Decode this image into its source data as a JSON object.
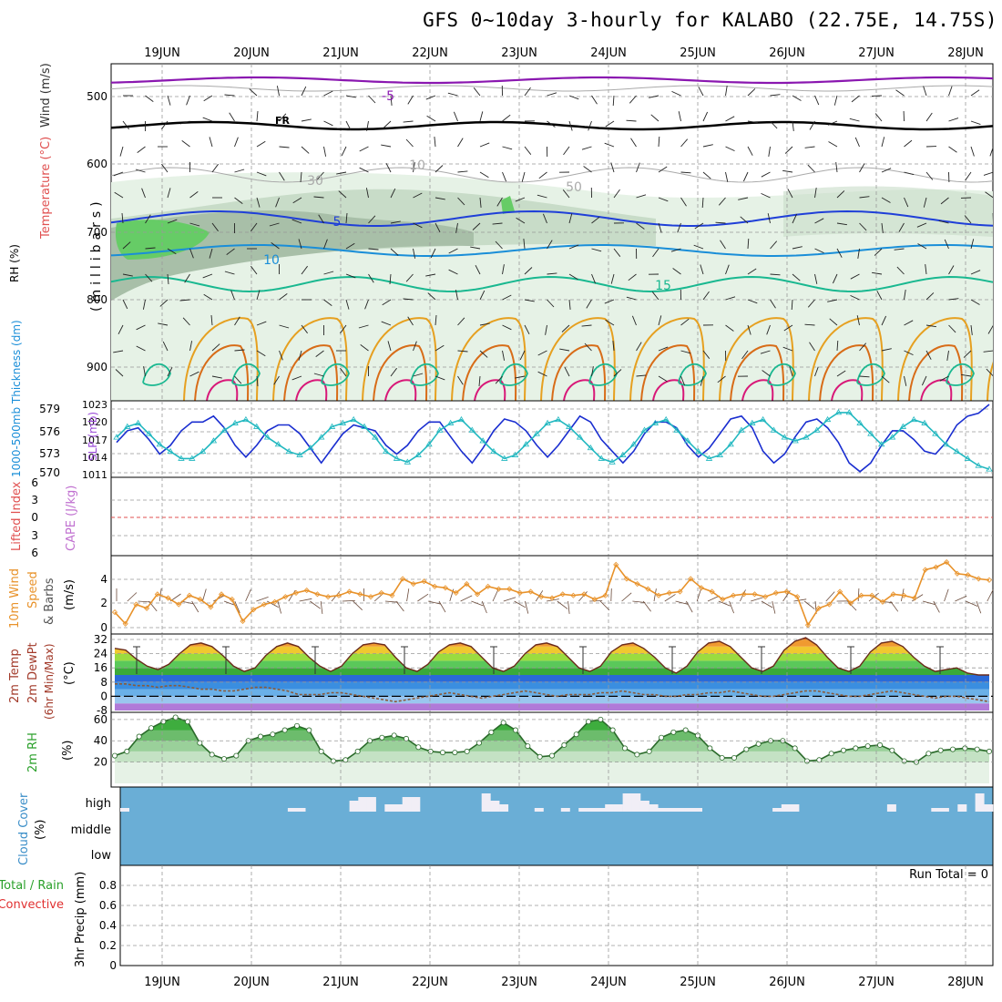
{
  "title": "GFS 0~10day 3-hourly for KALABO (22.75E, 14.75S)",
  "dates": [
    "19JUN",
    "20JUN",
    "21JUN",
    "22JUN",
    "23JUN",
    "24JUN",
    "25JUN",
    "26JUN",
    "27JUN",
    "28JUN"
  ],
  "colors": {
    "grid": "#999999",
    "rh_fill_light": "#e6f2e6",
    "rh_fill_mid": "#c8dcc8",
    "rh_fill_dark": "#a8bfa8",
    "rh_fill_green": "#66cc66",
    "temp_purple": "#8a17b0",
    "temp_blue": "#1f3fd8",
    "temp_lightblue": "#1a8ed8",
    "temp_teal": "#19b890",
    "temp_orange": "#e6a020",
    "temp_darkorange": "#d86c18",
    "temp_magenta": "#d81878",
    "slp_line": "#1a2ed0",
    "thickness_line": "#22b8c0",
    "wind10m_line": "#e8922a",
    "rh2m_fill": "#3dad3d",
    "cloud_bg": "#6aaed6",
    "cloud_bar": "#f1eef6",
    "zero_line": "#e05050",
    "dewpt_line": "#8a5a3a"
  },
  "panels": {
    "upper_air": {
      "ylabel_wind": "Wind (m/s)",
      "ylabel_temp": "Temperature (°C)",
      "ylabel_rh": "RH (%)",
      "ylabel_millibars": "(millibars)",
      "yticks": [
        "500",
        "600",
        "700",
        "800",
        "900"
      ],
      "contour_labels": [
        "-5",
        "FR",
        "5",
        "10",
        "15",
        "10",
        "30",
        "50"
      ]
    },
    "slp": {
      "ylabel_left": "1000-500mb Thickness (dm)",
      "ylabel_right": "SLP (mb)",
      "thickness_ticks": [
        "579",
        "576",
        "573",
        "570"
      ],
      "slp_ticks": [
        "1023",
        "1020",
        "1017",
        "1014",
        "1011"
      ]
    },
    "stability": {
      "ylabel_li": "Lifted Index",
      "ylabel_cape": "CAPE (J/kg)",
      "yticks": [
        "6",
        "3",
        "0",
        "3",
        "6"
      ]
    },
    "wind10m": {
      "ylabel": "10m Wind Speed & Barbs (m/s)",
      "ylabel_lines": [
        "10m Wind",
        "Speed",
        "& Barbs",
        "(m/s)"
      ],
      "yticks": [
        "4",
        "2",
        "0"
      ]
    },
    "temp2m": {
      "ylabel_lines": [
        "2m Temp",
        "2m DewPt",
        "(6hr Min/Max)",
        "(°C)"
      ],
      "yticks": [
        "32",
        "24",
        "16",
        "8",
        "0",
        "-8"
      ]
    },
    "rh2m": {
      "ylabel": "2m RH",
      "unit": "(%)",
      "yticks": [
        "60",
        "40",
        "20"
      ]
    },
    "cloud": {
      "ylabel": "Cloud Cover",
      "unit": "(%)",
      "levels": [
        "high",
        "middle",
        "low"
      ]
    },
    "precip": {
      "ylabel_lines": [
        "Total / Rain",
        "Convective",
        "3hr Precip (mm)"
      ],
      "run_total": "Run Total = 0",
      "yticks": [
        "0.8",
        "0.6",
        "0.4",
        "0.2",
        "0"
      ]
    }
  },
  "chart_data": [
    {
      "type": "line",
      "name": "slp_thickness",
      "x": "3-hourly steps, 18 Jun 18Z to 28 Jun 06Z",
      "series": [
        {
          "name": "SLP (mb)",
          "axis": "right",
          "ylim": [
            1011,
            1023
          ],
          "values": [
            1016.5,
            1018.5,
            1019,
            1017,
            1014.5,
            1016,
            1018.5,
            1020,
            1020,
            1021,
            1019,
            1016,
            1014,
            1016,
            1018.5,
            1019.5,
            1019.5,
            1018,
            1015.5,
            1013,
            1015.5,
            1018,
            1019.5,
            1019,
            1018.5,
            1016,
            1014.5,
            1016,
            1018.5,
            1020,
            1020,
            1017.5,
            1015,
            1013,
            1015.5,
            1018.5,
            1020.5,
            1020,
            1018.5,
            1016,
            1014,
            1016,
            1018.5,
            1021,
            1020,
            1017,
            1015,
            1013,
            1015,
            1018,
            1020,
            1020,
            1019,
            1016,
            1014,
            1015.5,
            1018,
            1020.5,
            1021,
            1019,
            1015,
            1013,
            1014.5,
            1017.5,
            1020,
            1020.5,
            1019,
            1016.5,
            1013,
            1011.5,
            1013,
            1016,
            1018.5,
            1018.5,
            1017,
            1015,
            1014.5,
            1016.5,
            1019.5,
            1021,
            1021.5,
            1023
          ]
        },
        {
          "name": "1000-500mb Thickness (dm)",
          "axis": "left",
          "ylim": [
            570,
            579
          ],
          "values": [
            575,
            576.5,
            577,
            575.5,
            574,
            573,
            572,
            572,
            573,
            574.5,
            576,
            577,
            577.5,
            576.5,
            575,
            574,
            573,
            572.5,
            573.5,
            575,
            576.5,
            577,
            577.5,
            576.5,
            575,
            573,
            572,
            571.5,
            572.5,
            574,
            576,
            577,
            577.5,
            576,
            574.5,
            573,
            572,
            572.5,
            574,
            575.5,
            577,
            577.5,
            576.5,
            575,
            573.5,
            572,
            571.5,
            572.5,
            574,
            576,
            577,
            577.5,
            576,
            574.5,
            573,
            572,
            572.5,
            574,
            576,
            577,
            577.5,
            576,
            575,
            574.5,
            575,
            576,
            577.5,
            578.5,
            578.5,
            577,
            575.5,
            574,
            575,
            576.5,
            577.5,
            577,
            575.5,
            574,
            573,
            572,
            571,
            570.5
          ]
        }
      ]
    },
    {
      "type": "line",
      "name": "10m_wind_speed",
      "ylim": [
        0,
        5
      ],
      "values": [
        1.2,
        0.3,
        1.8,
        1.5,
        2.6,
        2.3,
        1.8,
        2.5,
        2.2,
        1.6,
        2.6,
        2.2,
        0.5,
        1.4,
        1.8,
        2,
        2.4,
        2.7,
        2.9,
        2.6,
        2.4,
        2.5,
        2.8,
        2.6,
        2.4,
        2.7,
        2.5,
        3.8,
        3.4,
        3.6,
        3.2,
        3.1,
        2.7,
        3.4,
        2.6,
        3.2,
        3,
        3,
        2.7,
        2.8,
        2.4,
        2.3,
        2.6,
        2.5,
        2.6,
        2.2,
        2.5,
        4.9,
        3.8,
        3.4,
        3,
        2.5,
        2.7,
        2.8,
        3.8,
        3.1,
        2.8,
        2.2,
        2.5,
        2.6,
        2.6,
        2.4,
        2.7,
        2.8,
        2.4,
        0.2,
        1.5,
        1.8,
        2.8,
        1.9,
        2.5,
        2.5,
        2,
        2.6,
        2.5,
        2.3,
        4.5,
        4.7,
        5.1,
        4.2,
        4.1,
        3.8,
        3.7
      ]
    },
    {
      "type": "area",
      "name": "2m_temperature",
      "ylim": [
        -8,
        32
      ],
      "values": [
        27,
        26,
        21,
        17,
        15,
        18,
        24,
        29,
        30,
        28,
        23,
        17,
        14,
        16,
        23,
        28,
        30,
        28,
        22,
        17,
        14,
        17,
        24,
        29,
        30,
        29,
        22,
        16,
        14,
        18,
        25,
        29,
        30,
        28,
        22,
        16,
        14,
        17,
        24,
        29,
        30,
        28,
        22,
        16,
        14,
        17,
        25,
        29,
        30,
        27,
        22,
        16,
        13,
        17,
        25,
        30,
        31,
        28,
        22,
        16,
        14,
        17,
        26,
        31,
        33,
        29,
        22,
        16,
        14,
        17,
        25,
        30,
        31,
        28,
        22,
        17,
        14,
        15,
        16,
        13,
        12,
        12
      ]
    },
    {
      "type": "line",
      "name": "2m_dewpoint",
      "ylim": [
        -8,
        32
      ],
      "values": [
        7,
        7,
        6,
        6,
        5,
        6,
        6,
        5,
        4,
        4,
        3,
        3,
        4,
        5,
        5,
        4,
        3,
        1,
        1,
        1,
        2,
        2,
        1,
        0,
        -1,
        -2,
        -3,
        -2,
        -1,
        0,
        1,
        2,
        1,
        0,
        -1,
        0,
        1,
        2,
        3,
        2,
        1,
        0,
        1,
        1,
        1,
        2,
        2,
        3,
        2,
        1,
        1,
        0,
        0,
        1,
        1,
        2,
        2,
        3,
        2,
        1,
        0,
        0,
        1,
        2,
        3,
        3,
        2,
        1,
        0,
        0,
        1,
        2,
        3,
        2,
        1,
        0,
        -1,
        0,
        0,
        -1,
        -2,
        -3
      ]
    },
    {
      "type": "area",
      "name": "2m_rh",
      "ylim": [
        0,
        65
      ],
      "values": [
        26,
        30,
        44,
        52,
        58,
        62,
        58,
        38,
        27,
        23,
        26,
        40,
        44,
        46,
        50,
        54,
        50,
        30,
        21,
        22,
        30,
        40,
        43,
        45,
        42,
        34,
        30,
        29,
        29,
        30,
        38,
        48,
        57,
        50,
        35,
        25,
        26,
        36,
        46,
        58,
        60,
        50,
        33,
        27,
        30,
        43,
        48,
        50,
        45,
        33,
        24,
        24,
        32,
        37,
        40,
        40,
        33,
        21,
        22,
        28,
        31,
        33,
        35,
        36,
        31,
        21,
        20,
        28,
        31,
        32,
        33,
        32,
        30
      ]
    },
    {
      "type": "bar",
      "name": "cloud_high_cover",
      "values": [
        1,
        0,
        0,
        0,
        0,
        0,
        0,
        0,
        0,
        0,
        0,
        0,
        0,
        0,
        0,
        0,
        0,
        0,
        0,
        1,
        1,
        0,
        0,
        0,
        0,
        0,
        3,
        4,
        4,
        0,
        2,
        2,
        4,
        4,
        0,
        0,
        0,
        0,
        0,
        0,
        0,
        5,
        3,
        2,
        0,
        0,
        0,
        1,
        0,
        0,
        1,
        0,
        1,
        1,
        1,
        2,
        2,
        5,
        5,
        3,
        2,
        1,
        1,
        1,
        1,
        1,
        0,
        0,
        0,
        0,
        0,
        0,
        0,
        0,
        1,
        2,
        2,
        0,
        0,
        0,
        0,
        0,
        0,
        0,
        0,
        0,
        0,
        2,
        0,
        0,
        0,
        0,
        1,
        1,
        0,
        2,
        0,
        5,
        2
      ]
    },
    {
      "type": "bar",
      "name": "3hr_precip",
      "ylim": [
        0,
        1
      ],
      "values": []
    }
  ]
}
